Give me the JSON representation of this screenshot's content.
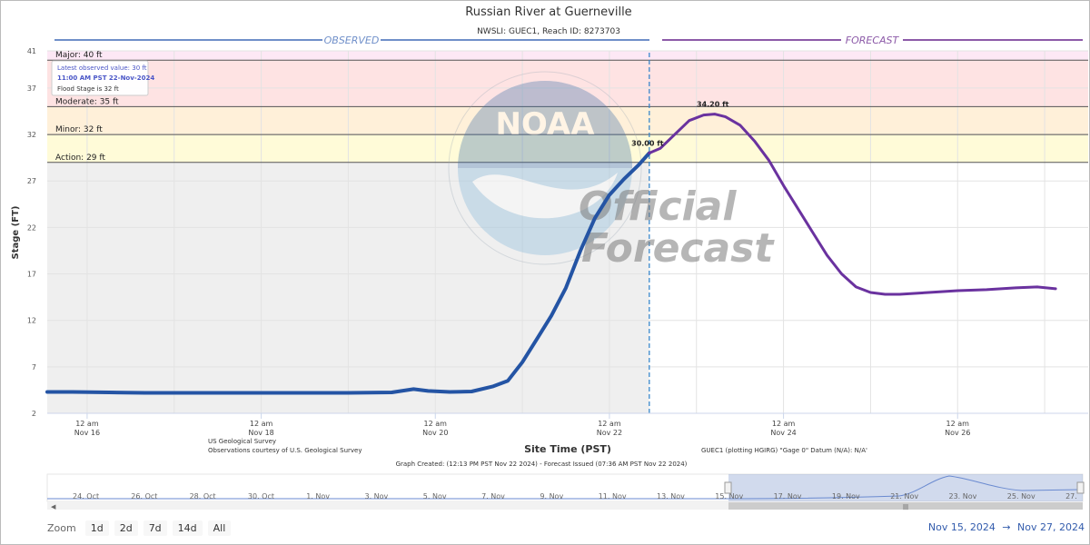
{
  "header": {
    "title": "Russian River at Guerneville",
    "subtitle": "NWSLI: GUEC1, Reach ID: 8273703",
    "observed_label": "OBSERVED",
    "forecast_label": "FORECAST"
  },
  "colors": {
    "observed_line": "#2454a4",
    "forecast_line": "#6a329f",
    "header_observed": "#6f8fc9",
    "header_forecast": "#8c5aa8",
    "major_band": "#fde8f5",
    "moderate_band": "#fee3e3",
    "minor_band": "#fff0d9",
    "action_band": "#fffbd8",
    "observed_area": "#efefef"
  },
  "thresholds": [
    {
      "label": "Major: 40 ft",
      "value": 40
    },
    {
      "label": "Moderate: 35 ft",
      "value": 35
    },
    {
      "label": "Minor: 32 ft",
      "value": 32
    },
    {
      "label": "Action: 29 ft",
      "value": 29
    }
  ],
  "tooltip": {
    "line1": "Latest observed value: 30 ft",
    "line2": "11:00 AM PST 22-Nov-2024",
    "line3": "Flood Stage is 32 ft"
  },
  "watermark": {
    "official": "Official",
    "forecast": "Forecast"
  },
  "footer": {
    "source1": "US Geological Survey",
    "source2": "Observations courtesy of U.S. Geological Survey",
    "datum": "GUEC1 (plotting HGIRG) \"Gage 0\" Datum (N/A): N/A'",
    "created": "Graph Created: (12:13 PM PST Nov 22 2024) - Forecast Issued (07:36 AM PST Nov 22 2024)"
  },
  "navigator": {
    "labels": [
      "24. Oct",
      "26. Oct",
      "28. Oct",
      "30. Oct",
      "1. Nov",
      "3. Nov",
      "5. Nov",
      "7. Nov",
      "9. Nov",
      "11. Nov",
      "13. Nov",
      "15. Nov",
      "17. Nov",
      "19. Nov",
      "21. Nov",
      "23. Nov",
      "25. Nov",
      "27."
    ],
    "handle_glyph": "|||"
  },
  "zoom": {
    "label": "Zoom",
    "buttons": [
      "1d",
      "2d",
      "7d",
      "14d",
      "All"
    ]
  },
  "range": {
    "from": "Nov 15, 2024",
    "arrow": "→",
    "to": "Nov 27, 2024"
  },
  "chart_data": {
    "type": "line",
    "title": "Russian River at Guerneville",
    "subtitle": "NWSLI: GUEC1, Reach ID: 8273703",
    "xlabel": "Site Time (PST)",
    "ylabel": "Stage (FT)",
    "x_unit": "hours since Nov 15 12 am PST",
    "xlim": [
      13,
      300
    ],
    "ylim": [
      2,
      41
    ],
    "yticks": [
      2,
      7,
      12,
      17,
      22,
      27,
      32,
      37,
      41
    ],
    "xticks": [
      {
        "x": 24,
        "line1": "12 am",
        "line2": "Nov 16"
      },
      {
        "x": 72,
        "line1": "12 am",
        "line2": "Nov 18"
      },
      {
        "x": 120,
        "line1": "12 am",
        "line2": "Nov 20"
      },
      {
        "x": 168,
        "line1": "12 am",
        "line2": "Nov 22"
      },
      {
        "x": 216,
        "line1": "12 am",
        "line2": "Nov 24"
      },
      {
        "x": 264,
        "line1": "12 am",
        "line2": "Nov 26"
      }
    ],
    "minor_gridlines_x": [
      48,
      96,
      144,
      192,
      240,
      288
    ],
    "grid": true,
    "observed_end_x": 179,
    "series": [
      {
        "name": "OBSERVED",
        "points": [
          [
            13,
            4.3
          ],
          [
            20,
            4.3
          ],
          [
            30,
            4.25
          ],
          [
            40,
            4.2
          ],
          [
            60,
            4.2
          ],
          [
            80,
            4.2
          ],
          [
            96,
            4.2
          ],
          [
            108,
            4.25
          ],
          [
            114,
            4.6
          ],
          [
            118,
            4.4
          ],
          [
            124,
            4.3
          ],
          [
            130,
            4.35
          ],
          [
            136,
            4.9
          ],
          [
            140,
            5.5
          ],
          [
            144,
            7.5
          ],
          [
            148,
            10
          ],
          [
            152,
            12.5
          ],
          [
            156,
            15.5
          ],
          [
            160,
            19.5
          ],
          [
            164,
            23
          ],
          [
            168,
            25.5
          ],
          [
            172,
            27.2
          ],
          [
            176,
            28.7
          ],
          [
            179,
            30
          ]
        ]
      },
      {
        "name": "FORECAST",
        "points": [
          [
            179,
            30
          ],
          [
            182,
            30.5
          ],
          [
            186,
            32
          ],
          [
            190,
            33.5
          ],
          [
            194,
            34.1
          ],
          [
            197,
            34.2
          ],
          [
            200,
            33.9
          ],
          [
            204,
            33
          ],
          [
            208,
            31.3
          ],
          [
            212,
            29.2
          ],
          [
            216,
            26.5
          ],
          [
            220,
            24
          ],
          [
            224,
            21.5
          ],
          [
            228,
            19
          ],
          [
            232,
            17
          ],
          [
            236,
            15.6
          ],
          [
            240,
            15
          ],
          [
            244,
            14.8
          ],
          [
            248,
            14.8
          ],
          [
            256,
            15
          ],
          [
            264,
            15.2
          ],
          [
            272,
            15.3
          ],
          [
            280,
            15.5
          ],
          [
            286,
            15.6
          ],
          [
            291,
            15.4
          ]
        ]
      }
    ],
    "data_labels": [
      {
        "x": 179,
        "y": 30,
        "text": "30.00 ft"
      },
      {
        "x": 197,
        "y": 34.2,
        "text": "34.20 ft"
      }
    ]
  }
}
